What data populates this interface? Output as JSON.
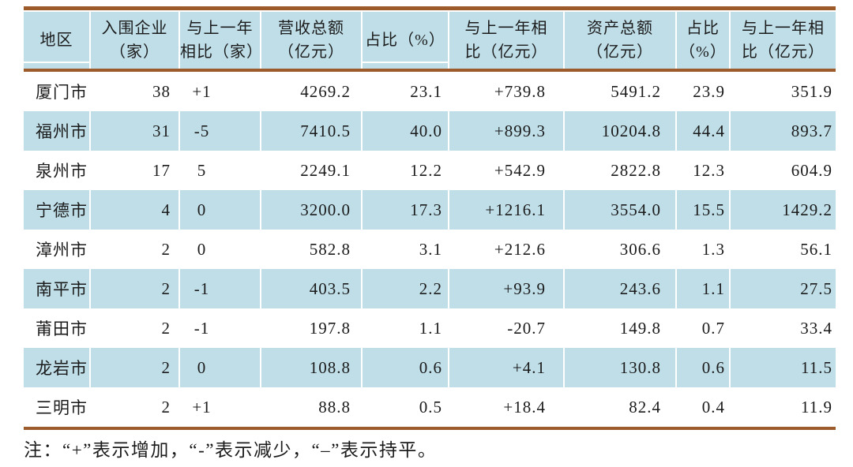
{
  "chart_data": {
    "type": "table",
    "title": "",
    "columns": [
      {
        "line1": "地区",
        "line2": ""
      },
      {
        "line1": "入围企业",
        "line2": "（家）"
      },
      {
        "line1": "与上一年",
        "line2": "相比（家）"
      },
      {
        "line1": "营收总额",
        "line2": "（亿元）"
      },
      {
        "line1": "占比（%）",
        "line2": ""
      },
      {
        "line1": "与上一年相",
        "line2": "比（亿元）"
      },
      {
        "line1": "资产总额",
        "line2": "（亿元）"
      },
      {
        "line1": "占比",
        "line2": "（%）"
      },
      {
        "line1": "与上一年相",
        "line2": "比（亿元）"
      }
    ],
    "rows": [
      {
        "cells": [
          "厦门市",
          "38",
          "+1",
          "4269.2",
          "23.1",
          "+739.8",
          "5491.2",
          "23.9",
          "351.9"
        ]
      },
      {
        "cells": [
          "福州市",
          "31",
          "-5",
          "7410.5",
          "40.0",
          "+899.3",
          "10204.8",
          "44.4",
          "893.7"
        ]
      },
      {
        "cells": [
          "泉州市",
          "17",
          "5",
          "2249.1",
          "12.2",
          "+542.9",
          "2822.8",
          "12.3",
          "604.9"
        ]
      },
      {
        "cells": [
          "宁德市",
          "4",
          "0",
          "3200.0",
          "17.3",
          "+1216.1",
          "3554.0",
          "15.5",
          "1429.2"
        ]
      },
      {
        "cells": [
          "漳州市",
          "2",
          "0",
          "582.8",
          "3.1",
          "+212.6",
          "306.6",
          "1.3",
          "56.1"
        ]
      },
      {
        "cells": [
          "南平市",
          "2",
          "-1",
          "403.5",
          "2.2",
          "+93.9",
          "243.6",
          "1.1",
          "27.5"
        ]
      },
      {
        "cells": [
          "莆田市",
          "2",
          "-1",
          "197.8",
          "1.1",
          "-20.7",
          "149.8",
          "0.7",
          "33.4"
        ]
      },
      {
        "cells": [
          "龙岩市",
          "2",
          "0",
          "108.8",
          "0.6",
          "+4.1",
          "130.8",
          "0.6",
          "11.5"
        ]
      },
      {
        "cells": [
          "三明市",
          "2",
          "+1",
          "88.8",
          "0.5",
          "+18.4",
          "82.4",
          "0.4",
          "11.9"
        ]
      }
    ]
  },
  "note": "注：“+”表示增加，“-”表示减少，“–”表示持平。",
  "colors": {
    "stripe_bg": "#bfdee8",
    "rule": "#9d5a2b",
    "text": "#1b1b1b"
  }
}
